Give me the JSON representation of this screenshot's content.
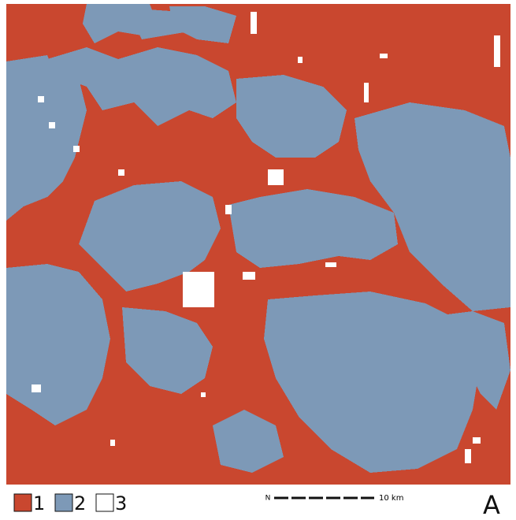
{
  "legend": [
    {
      "label": "1",
      "color": "#c9472f"
    },
    {
      "label": "2",
      "color": "#7d99b7"
    },
    {
      "label": "3",
      "color": "#ffffff"
    }
  ],
  "scale": {
    "north": "N",
    "label": "10 km"
  },
  "panel_label": "A"
}
